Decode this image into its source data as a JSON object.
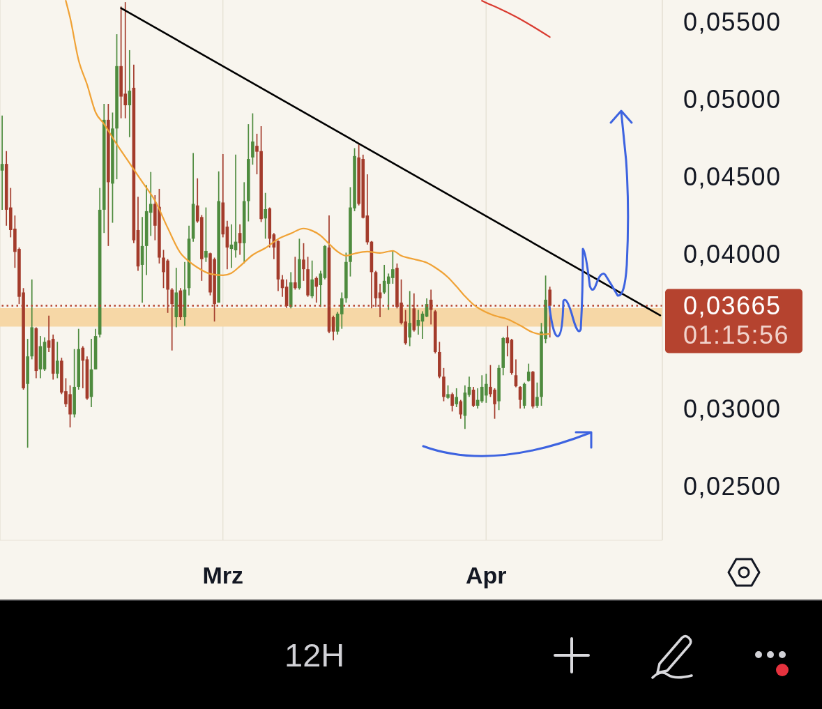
{
  "chart_data": {
    "type": "candlestick",
    "categories": [
      null,
      null,
      null,
      null,
      null,
      null,
      null,
      null,
      null,
      null,
      null,
      null,
      null,
      null,
      null,
      null,
      null,
      null,
      null,
      null,
      null,
      null,
      null,
      null,
      null,
      null,
      null,
      null,
      null,
      null,
      null,
      null,
      null,
      null,
      null,
      null,
      null,
      null,
      null,
      null,
      null,
      null,
      null,
      null,
      null,
      null,
      null,
      null,
      null,
      null,
      null,
      null,
      "Mrz",
      null,
      null,
      null,
      null,
      null,
      null,
      null,
      null,
      null,
      null,
      null,
      null,
      null,
      null,
      null,
      null,
      null,
      null,
      null,
      null,
      null,
      null,
      null,
      null,
      null,
      null,
      null,
      null,
      null,
      null,
      null,
      null,
      null,
      null,
      null,
      null,
      null,
      null,
      null,
      null,
      null,
      null,
      null,
      null,
      null,
      null,
      null,
      null,
      null,
      null,
      null,
      null,
      null,
      null,
      null,
      null,
      null,
      null,
      null,
      null,
      null,
      "Apr",
      null,
      null,
      null,
      null,
      null,
      null,
      null,
      null,
      null,
      null,
      null,
      null,
      null,
      null,
      null,
      null,
      null,
      null,
      null,
      null,
      null,
      null,
      null,
      null,
      null,
      null,
      null,
      null,
      null,
      null,
      null,
      null,
      null,
      null,
      null,
      null,
      null,
      null,
      null,
      null,
      null
    ],
    "ohlc": [
      [
        0.04538,
        0.04894,
        0.04285,
        0.04581
      ],
      [
        0.04581,
        0.04664,
        0.04182,
        0.04285
      ],
      [
        0.043,
        0.04426,
        0.04107,
        0.04154
      ],
      [
        0.04163,
        0.04248,
        0.0391,
        0.04013
      ],
      [
        0.04032,
        0.04041,
        0.03676,
        0.03723
      ],
      [
        0.03751,
        0.03779,
        0.03123,
        0.03132
      ],
      [
        0.0316,
        0.03451,
        0.02748,
        0.03338
      ],
      [
        0.03338,
        0.03835,
        0.03319,
        0.03526
      ],
      [
        0.0352,
        0.03526,
        0.03197,
        0.03244
      ],
      [
        0.03254,
        0.03469,
        0.03197,
        0.03404
      ],
      [
        0.03254,
        0.0346,
        0.03244,
        0.03432
      ],
      [
        0.03441,
        0.03601,
        0.03366,
        0.03394
      ],
      [
        0.03451,
        0.03479,
        0.03188,
        0.03226
      ],
      [
        0.03226,
        0.03432,
        0.03197,
        0.0331
      ],
      [
        0.0331,
        0.03329,
        0.03094,
        0.03104
      ],
      [
        0.03113,
        0.03197,
        0.0301,
        0.03029
      ],
      [
        0.03094,
        0.03151,
        0.02879,
        0.02963
      ],
      [
        0.02963,
        0.03385,
        0.02944,
        0.03141
      ],
      [
        0.03141,
        0.03516,
        0.03123,
        0.03385
      ],
      [
        0.03394,
        0.03404,
        0.03132,
        0.0331
      ],
      [
        0.03319,
        0.03338,
        0.03057,
        0.03066
      ],
      [
        0.03076,
        0.03451,
        0.0301,
        0.03254
      ],
      [
        0.03254,
        0.03516,
        0.03254,
        0.03469
      ],
      [
        0.03479,
        0.04426,
        0.0346,
        0.04285
      ],
      [
        0.04285,
        0.04969,
        0.04135,
        0.04866
      ],
      [
        0.04866,
        0.04969,
        0.04051,
        0.04463
      ],
      [
        0.04454,
        0.04913,
        0.04201,
        0.0481
      ],
      [
        0.0481,
        0.05419,
        0.04482,
        0.05213
      ],
      [
        0.05213,
        0.05598,
        0.04876,
        0.05016
      ],
      [
        0.05035,
        0.05626,
        0.04876,
        0.0496
      ],
      [
        0.0496,
        0.05316,
        0.04754,
        0.05054
      ],
      [
        0.05073,
        0.05222,
        0.0407,
        0.04088
      ],
      [
        0.04154,
        0.04369,
        0.03891,
        0.03919
      ],
      [
        0.03929,
        0.04238,
        0.03685,
        0.04051
      ],
      [
        0.04051,
        0.04444,
        0.03863,
        0.04276
      ],
      [
        0.04266,
        0.04529,
        0.04116,
        0.04323
      ],
      [
        0.04323,
        0.04379,
        0.04088,
        0.04182
      ],
      [
        0.04304,
        0.0442,
        0.03938,
        0.03976
      ],
      [
        0.03976,
        0.04026,
        0.03779,
        0.03882
      ],
      [
        0.03957,
        0.03966,
        0.03619,
        0.03769
      ],
      [
        0.03769,
        0.03779,
        0.03376,
        0.03676
      ],
      [
        0.03591,
        0.0391,
        0.03526,
        0.03751
      ],
      [
        0.03764,
        0.03779,
        0.03573,
        0.03591
      ],
      [
        0.03591,
        0.03948,
        0.03535,
        0.03769
      ],
      [
        0.03779,
        0.04182,
        0.03732,
        0.04098
      ],
      [
        0.04098,
        0.04651,
        0.04079,
        0.04323
      ],
      [
        0.04313,
        0.04488,
        0.04201,
        0.0421
      ],
      [
        0.04238,
        0.04251,
        0.03826,
        0.03966
      ],
      [
        0.03976,
        0.043,
        0.03948,
        0.04019
      ],
      [
        0.04004,
        0.04008,
        0.03732,
        0.03751
      ],
      [
        0.03966,
        0.03976,
        0.03563,
        0.03676
      ],
      [
        0.03685,
        0.04533,
        0.03685,
        0.04341
      ],
      [
        0.04332,
        0.04645,
        0.04107,
        0.04126
      ],
      [
        0.04176,
        0.04214,
        0.03901,
        0.04041
      ],
      [
        0.04032,
        0.04191,
        0.0391,
        0.0406
      ],
      [
        0.04023,
        0.04641,
        0.03976,
        0.04079
      ],
      [
        0.04135,
        0.04191,
        0.03994,
        0.04069
      ],
      [
        0.04069,
        0.04463,
        0.03938,
        0.04341
      ],
      [
        0.04341,
        0.04838,
        0.0421,
        0.04613
      ],
      [
        0.04623,
        0.04908,
        0.04576,
        0.04726
      ],
      [
        0.04698,
        0.04776,
        0.04514,
        0.0466
      ],
      [
        0.04664,
        0.04825,
        0.04206,
        0.04225
      ],
      [
        0.04229,
        0.04394,
        0.04098,
        0.04289
      ],
      [
        0.04294,
        0.043,
        0.04041,
        0.04098
      ],
      [
        0.04126,
        0.04135,
        0.03966,
        0.04041
      ],
      [
        0.04083,
        0.04088,
        0.0376,
        0.03835
      ],
      [
        0.03835,
        0.03863,
        0.03723,
        0.03779
      ],
      [
        0.03788,
        0.03835,
        0.03651,
        0.03663
      ],
      [
        0.03657,
        0.03882,
        0.03648,
        0.03816
      ],
      [
        0.03816,
        0.03981,
        0.03769,
        0.03779
      ],
      [
        0.03779,
        0.04098,
        0.03769,
        0.03966
      ],
      [
        0.03963,
        0.04069,
        0.03826,
        0.03901
      ],
      [
        0.03901,
        0.03981,
        0.03723,
        0.03732
      ],
      [
        0.03726,
        0.03957,
        0.03713,
        0.03835
      ],
      [
        0.03844,
        0.03854,
        0.03685,
        0.03788
      ],
      [
        0.03798,
        0.03891,
        0.03657,
        0.03873
      ],
      [
        0.03844,
        0.04056,
        0.03835,
        0.04051
      ],
      [
        0.04041,
        0.04248,
        0.03488,
        0.03498
      ],
      [
        0.03591,
        0.03601,
        0.03441,
        0.03498
      ],
      [
        0.03498,
        0.03625,
        0.03479,
        0.03614
      ],
      [
        0.0361,
        0.03751,
        0.03516,
        0.03713
      ],
      [
        0.03713,
        0.04008,
        0.03685,
        0.03948
      ],
      [
        0.03948,
        0.04431,
        0.03854,
        0.043
      ],
      [
        0.04294,
        0.04683,
        0.04276,
        0.04632
      ],
      [
        0.04623,
        0.04707,
        0.04313,
        0.04323
      ],
      [
        0.04613,
        0.04641,
        0.04229,
        0.04233
      ],
      [
        0.04248,
        0.04514,
        0.0406,
        0.04075
      ],
      [
        0.04079,
        0.04083,
        0.03648,
        0.03882
      ],
      [
        0.03882,
        0.03891,
        0.03657,
        0.03713
      ],
      [
        0.03751,
        0.03807,
        0.03591,
        0.03713
      ],
      [
        0.03751,
        0.03929,
        0.03741,
        0.03826
      ],
      [
        0.03807,
        0.03873,
        0.03638,
        0.03854
      ],
      [
        0.03844,
        0.04023,
        0.03807,
        0.03901
      ],
      [
        0.0391,
        0.03938,
        0.03648,
        0.03657
      ],
      [
        0.03685,
        0.03835,
        0.03544,
        0.03554
      ],
      [
        0.03563,
        0.03638,
        0.03413,
        0.03423
      ],
      [
        0.0346,
        0.0376,
        0.03404,
        0.03554
      ],
      [
        0.03648,
        0.03745,
        0.03498,
        0.03507
      ],
      [
        0.03535,
        0.03638,
        0.03479,
        0.03573
      ],
      [
        0.03563,
        0.03629,
        0.03451,
        0.03614
      ],
      [
        0.03595,
        0.03713,
        0.03591,
        0.03676
      ],
      [
        0.03704,
        0.03769,
        0.03544,
        0.03638
      ],
      [
        0.03629,
        0.03638,
        0.03357,
        0.03366
      ],
      [
        0.03366,
        0.03432,
        0.03197,
        0.03207
      ],
      [
        0.03207,
        0.03263,
        0.03048,
        0.03076
      ],
      [
        0.0307,
        0.03151,
        0.03063,
        0.03094
      ],
      [
        0.03094,
        0.03104,
        0.02982,
        0.03019
      ],
      [
        0.03029,
        0.03132,
        0.0301,
        0.03076
      ],
      [
        0.03048,
        0.03057,
        0.02935,
        0.02963
      ],
      [
        0.02954,
        0.03151,
        0.02869,
        0.03104
      ],
      [
        0.03089,
        0.03207,
        0.03076,
        0.03141
      ],
      [
        0.03123,
        0.03141,
        0.0301,
        0.03019
      ],
      [
        0.03019,
        0.03132,
        0.03001,
        0.03057
      ],
      [
        0.03048,
        0.03216,
        0.03038,
        0.03141
      ],
      [
        0.03085,
        0.03226,
        0.03038,
        0.0316
      ],
      [
        0.03141,
        0.03282,
        0.03076,
        0.03094
      ],
      [
        0.03123,
        0.03132,
        0.02935,
        0.03029
      ],
      [
        0.03048,
        0.03282,
        0.02991,
        0.03263
      ],
      [
        0.03263,
        0.03464,
        0.03216,
        0.03456
      ],
      [
        0.0346,
        0.03535,
        0.03338,
        0.03423
      ],
      [
        0.03445,
        0.03451,
        0.0322,
        0.03231
      ],
      [
        0.03216,
        0.03319,
        0.03138,
        0.03145
      ],
      [
        0.03141,
        0.03145,
        0.03001,
        0.03057
      ],
      [
        0.03019,
        0.03169,
        0.03001,
        0.0316
      ],
      [
        0.03179,
        0.03291,
        0.03175,
        0.03239
      ],
      [
        0.03239,
        0.03244,
        0.03001,
        0.03014
      ],
      [
        0.03019,
        0.03169,
        0.03006,
        0.03076
      ],
      [
        0.03076,
        0.03554,
        0.03019,
        0.03498
      ],
      [
        0.03451,
        0.0386,
        0.03423,
        0.03704
      ],
      [
        0.03769,
        0.03788,
        0.0346,
        0.03665
      ],
      null,
      null,
      null,
      null,
      null,
      null,
      null,
      null,
      null,
      null,
      null,
      null,
      null,
      null,
      null,
      null,
      null,
      null,
      null,
      null,
      null,
      null,
      null,
      null,
      null,
      null
    ],
    "colors": [
      "#4e8b3e",
      "#a33b2b",
      "#a33b2b",
      "#a33b2b",
      "#a33b2b",
      "#a33b2b",
      "#4e8b3e",
      "#4e8b3e",
      "#a33b2b",
      "#4e8b3e",
      "#4e8b3e",
      "#a33b2b",
      "#a33b2b",
      "#4e8b3e",
      "#a33b2b",
      "#a33b2b",
      "#a33b2b",
      "#4e8b3e",
      "#4e8b3e",
      "#a33b2b",
      "#a33b2b",
      "#4e8b3e",
      "#4e8b3e",
      "#4e8b3e",
      "#4e8b3e",
      "#a33b2b",
      "#4e8b3e",
      "#4e8b3e",
      "#a33b2b",
      "#a33b2b",
      "#4e8b3e",
      "#a33b2b",
      "#a33b2b",
      "#4e8b3e",
      "#4e8b3e",
      "#4e8b3e",
      "#a33b2b",
      "#a33b2b",
      "#a33b2b",
      "#a33b2b",
      "#a33b2b",
      "#4e8b3e",
      "#a33b2b",
      "#4e8b3e",
      "#4e8b3e",
      "#4e8b3e",
      "#a33b2b",
      "#a33b2b",
      "#4e8b3e",
      "#a33b2b",
      "#a33b2b",
      "#4e8b3e",
      "#a33b2b",
      "#a33b2b",
      "#4e8b3e",
      "#4e8b3e",
      "#a33b2b",
      "#4e8b3e",
      "#4e8b3e",
      "#4e8b3e",
      "#a33b2b",
      "#a33b2b",
      "#4e8b3e",
      "#a33b2b",
      "#a33b2b",
      "#a33b2b",
      "#a33b2b",
      "#a33b2b",
      "#4e8b3e",
      "#a33b2b",
      "#4e8b3e",
      "#a33b2b",
      "#a33b2b",
      "#4e8b3e",
      "#a33b2b",
      "#4e8b3e",
      "#4e8b3e",
      "#a33b2b",
      "#a33b2b",
      "#4e8b3e",
      "#4e8b3e",
      "#4e8b3e",
      "#4e8b3e",
      "#4e8b3e",
      "#a33b2b",
      "#a33b2b",
      "#a33b2b",
      "#a33b2b",
      "#a33b2b",
      "#a33b2b",
      "#4e8b3e",
      "#4e8b3e",
      "#4e8b3e",
      "#a33b2b",
      "#a33b2b",
      "#a33b2b",
      "#4e8b3e",
      "#a33b2b",
      "#4e8b3e",
      "#4e8b3e",
      "#4e8b3e",
      "#a33b2b",
      "#a33b2b",
      "#a33b2b",
      "#a33b2b",
      "#4e8b3e",
      "#a33b2b",
      "#4e8b3e",
      "#a33b2b",
      "#4e8b3e",
      "#4e8b3e",
      "#a33b2b",
      "#4e8b3e",
      "#4e8b3e",
      "#4e8b3e",
      "#a33b2b",
      "#a33b2b",
      "#4e8b3e",
      "#4e8b3e",
      "#a33b2b",
      "#a33b2b",
      "#a33b2b",
      "#a33b2b",
      "#4e8b3e",
      "#4e8b3e",
      "#a33b2b",
      "#4e8b3e",
      "#4e8b3e",
      "#4e8b3e",
      "#a33b2b",
      null,
      null,
      null,
      null,
      null,
      null,
      null,
      null,
      null,
      null,
      null,
      null,
      null,
      null,
      null,
      null,
      null,
      null,
      null,
      null,
      null,
      null,
      null,
      null,
      null,
      null
    ],
    "series": [
      {
        "type": "line",
        "color": "#f0a235",
        "values": [
          null,
          null,
          null,
          null,
          null,
          null,
          null,
          null,
          null,
          null,
          null,
          null,
          null,
          null,
          null,
          0.05635,
          0.05527,
          null,
          0.05253,
          null,
          0.05095,
          null,
          0.04915,
          null,
          0.04839,
          null,
          null,
          0.04708,
          null,
          null,
          0.04587,
          null,
          null,
          0.04465,
          null,
          null,
          0.04344,
          null,
          null,
          0.04168,
          null,
          null,
          0.04006,
          null,
          0.03952,
          null,
          0.03912,
          null,
          null,
          0.03871,
          null,
          null,
          0.03862,
          null,
          0.03876,
          null,
          0.0392,
          null,
          null,
          0.03993,
          null,
          null,
          0.04038,
          null,
          null,
          0.04096,
          null,
          null,
          0.04132,
          null,
          null,
          0.04164,
          null,
          0.0415,
          null,
          0.04119,
          null,
          0.04065,
          null,
          0.04015,
          null,
          0.03988,
          null,
          0.04002,
          null,
          null,
          0.04015,
          null,
          null,
          0.04006,
          null,
          null,
          0.0402,
          null,
          0.03988,
          null,
          null,
          0.03966,
          null,
          null,
          0.03943,
          null,
          0.03912,
          null,
          null,
          0.03849,
          null,
          0.0379,
          null,
          0.03727,
          null,
          0.03673,
          null,
          0.03637,
          null,
          null,
          0.03601,
          null,
          null,
          0.03579,
          null,
          null,
          0.03538,
          null,
          null,
          0.03493,
          null,
          0.0348,
          null,
          0.03484,
          null,
          null,
          null,
          null,
          null,
          null,
          null,
          null,
          null,
          null,
          null,
          null,
          null,
          null,
          null,
          null,
          null,
          null,
          null,
          null,
          null,
          null,
          null,
          null,
          null,
          null
        ]
      },
      {
        "type": "line",
        "color": "#d93b30",
        "values": [
          null,
          null,
          null,
          null,
          null,
          null,
          null,
          null,
          null,
          null,
          null,
          null,
          null,
          null,
          null,
          null,
          null,
          null,
          null,
          null,
          null,
          null,
          null,
          null,
          null,
          null,
          null,
          null,
          null,
          null,
          null,
          null,
          null,
          null,
          null,
          null,
          null,
          null,
          null,
          null,
          null,
          null,
          null,
          null,
          null,
          null,
          null,
          null,
          null,
          null,
          null,
          null,
          null,
          null,
          null,
          null,
          null,
          null,
          null,
          null,
          null,
          null,
          null,
          null,
          null,
          null,
          null,
          null,
          null,
          null,
          null,
          null,
          null,
          null,
          null,
          null,
          null,
          null,
          null,
          null,
          null,
          null,
          null,
          null,
          null,
          null,
          null,
          null,
          null,
          null,
          null,
          null,
          null,
          null,
          null,
          null,
          null,
          null,
          null,
          null,
          null,
          null,
          null,
          null,
          null,
          null,
          null,
          null,
          null,
          null,
          null,
          null,
          null,
          0.05635,
          0.05622,
          null,
          null,
          0.05586,
          null,
          null,
          null,
          0.05532,
          null,
          null,
          null,
          0.05469,
          null,
          null,
          null,
          0.05401,
          null,
          null,
          null,
          null,
          null,
          null,
          null,
          null,
          null,
          null,
          null,
          null,
          null,
          null,
          null,
          null,
          null,
          null,
          null,
          null,
          null,
          null,
          null,
          null,
          null,
          null
        ]
      },
      {
        "type": "line",
        "color": "#000000",
        "values": [
          null,
          null,
          null,
          null,
          null,
          null,
          null,
          null,
          null,
          null,
          null,
          null,
          null,
          null,
          null,
          null,
          null,
          null,
          null,
          null,
          null,
          null,
          null,
          null,
          null,
          null,
          null,
          null,
          0.05588,
          null,
          null,
          null,
          null,
          null,
          null,
          null,
          null,
          null,
          null,
          null,
          null,
          null,
          null,
          null,
          null,
          null,
          null,
          null,
          null,
          null,
          null,
          null,
          null,
          null,
          null,
          null,
          null,
          null,
          null,
          null,
          null,
          null,
          null,
          null,
          null,
          null,
          null,
          null,
          null,
          null,
          null,
          null,
          null,
          null,
          null,
          null,
          null,
          null,
          null,
          null,
          null,
          null,
          null,
          null,
          null,
          null,
          null,
          null,
          null,
          null,
          null,
          null,
          null,
          null,
          null,
          null,
          null,
          null,
          null,
          null,
          null,
          null,
          null,
          null,
          null,
          null,
          null,
          null,
          null,
          null,
          null,
          null,
          null,
          null,
          null,
          null,
          null,
          null,
          null,
          null,
          null,
          null,
          null,
          null,
          null,
          null,
          null,
          null,
          null,
          null,
          null,
          null,
          null,
          null,
          null,
          null,
          null,
          null,
          null,
          null,
          null,
          null,
          null,
          null,
          null,
          null,
          null,
          null,
          null,
          null,
          null,
          null,
          null,
          null,
          null,
          0.03603
        ]
      }
    ],
    "ylim": [
      0.0215,
      0.0564
    ],
    "yticks": [
      {
        "value": 0.025,
        "label": "0,02500"
      },
      {
        "value": 0.03,
        "label": "0,03000"
      },
      {
        "value": 0.04,
        "label": "0,04000"
      },
      {
        "value": 0.045,
        "label": "0,04500"
      },
      {
        "value": 0.05,
        "label": "0,05000"
      },
      {
        "value": 0.055,
        "label": "0,05500"
      }
    ],
    "grid": "x",
    "ref_lines": [
      {
        "axis": "y",
        "value": 0.03665,
        "label": "0,03665",
        "color": "#b5432f",
        "line_style": "dotted"
      }
    ],
    "bands": [
      {
        "axis": "y",
        "from": 0.0353,
        "to": 0.0365,
        "color": "#f6d7a6"
      }
    ],
    "annotations": [
      "01:15:56",
      "12H"
    ]
  }
}
